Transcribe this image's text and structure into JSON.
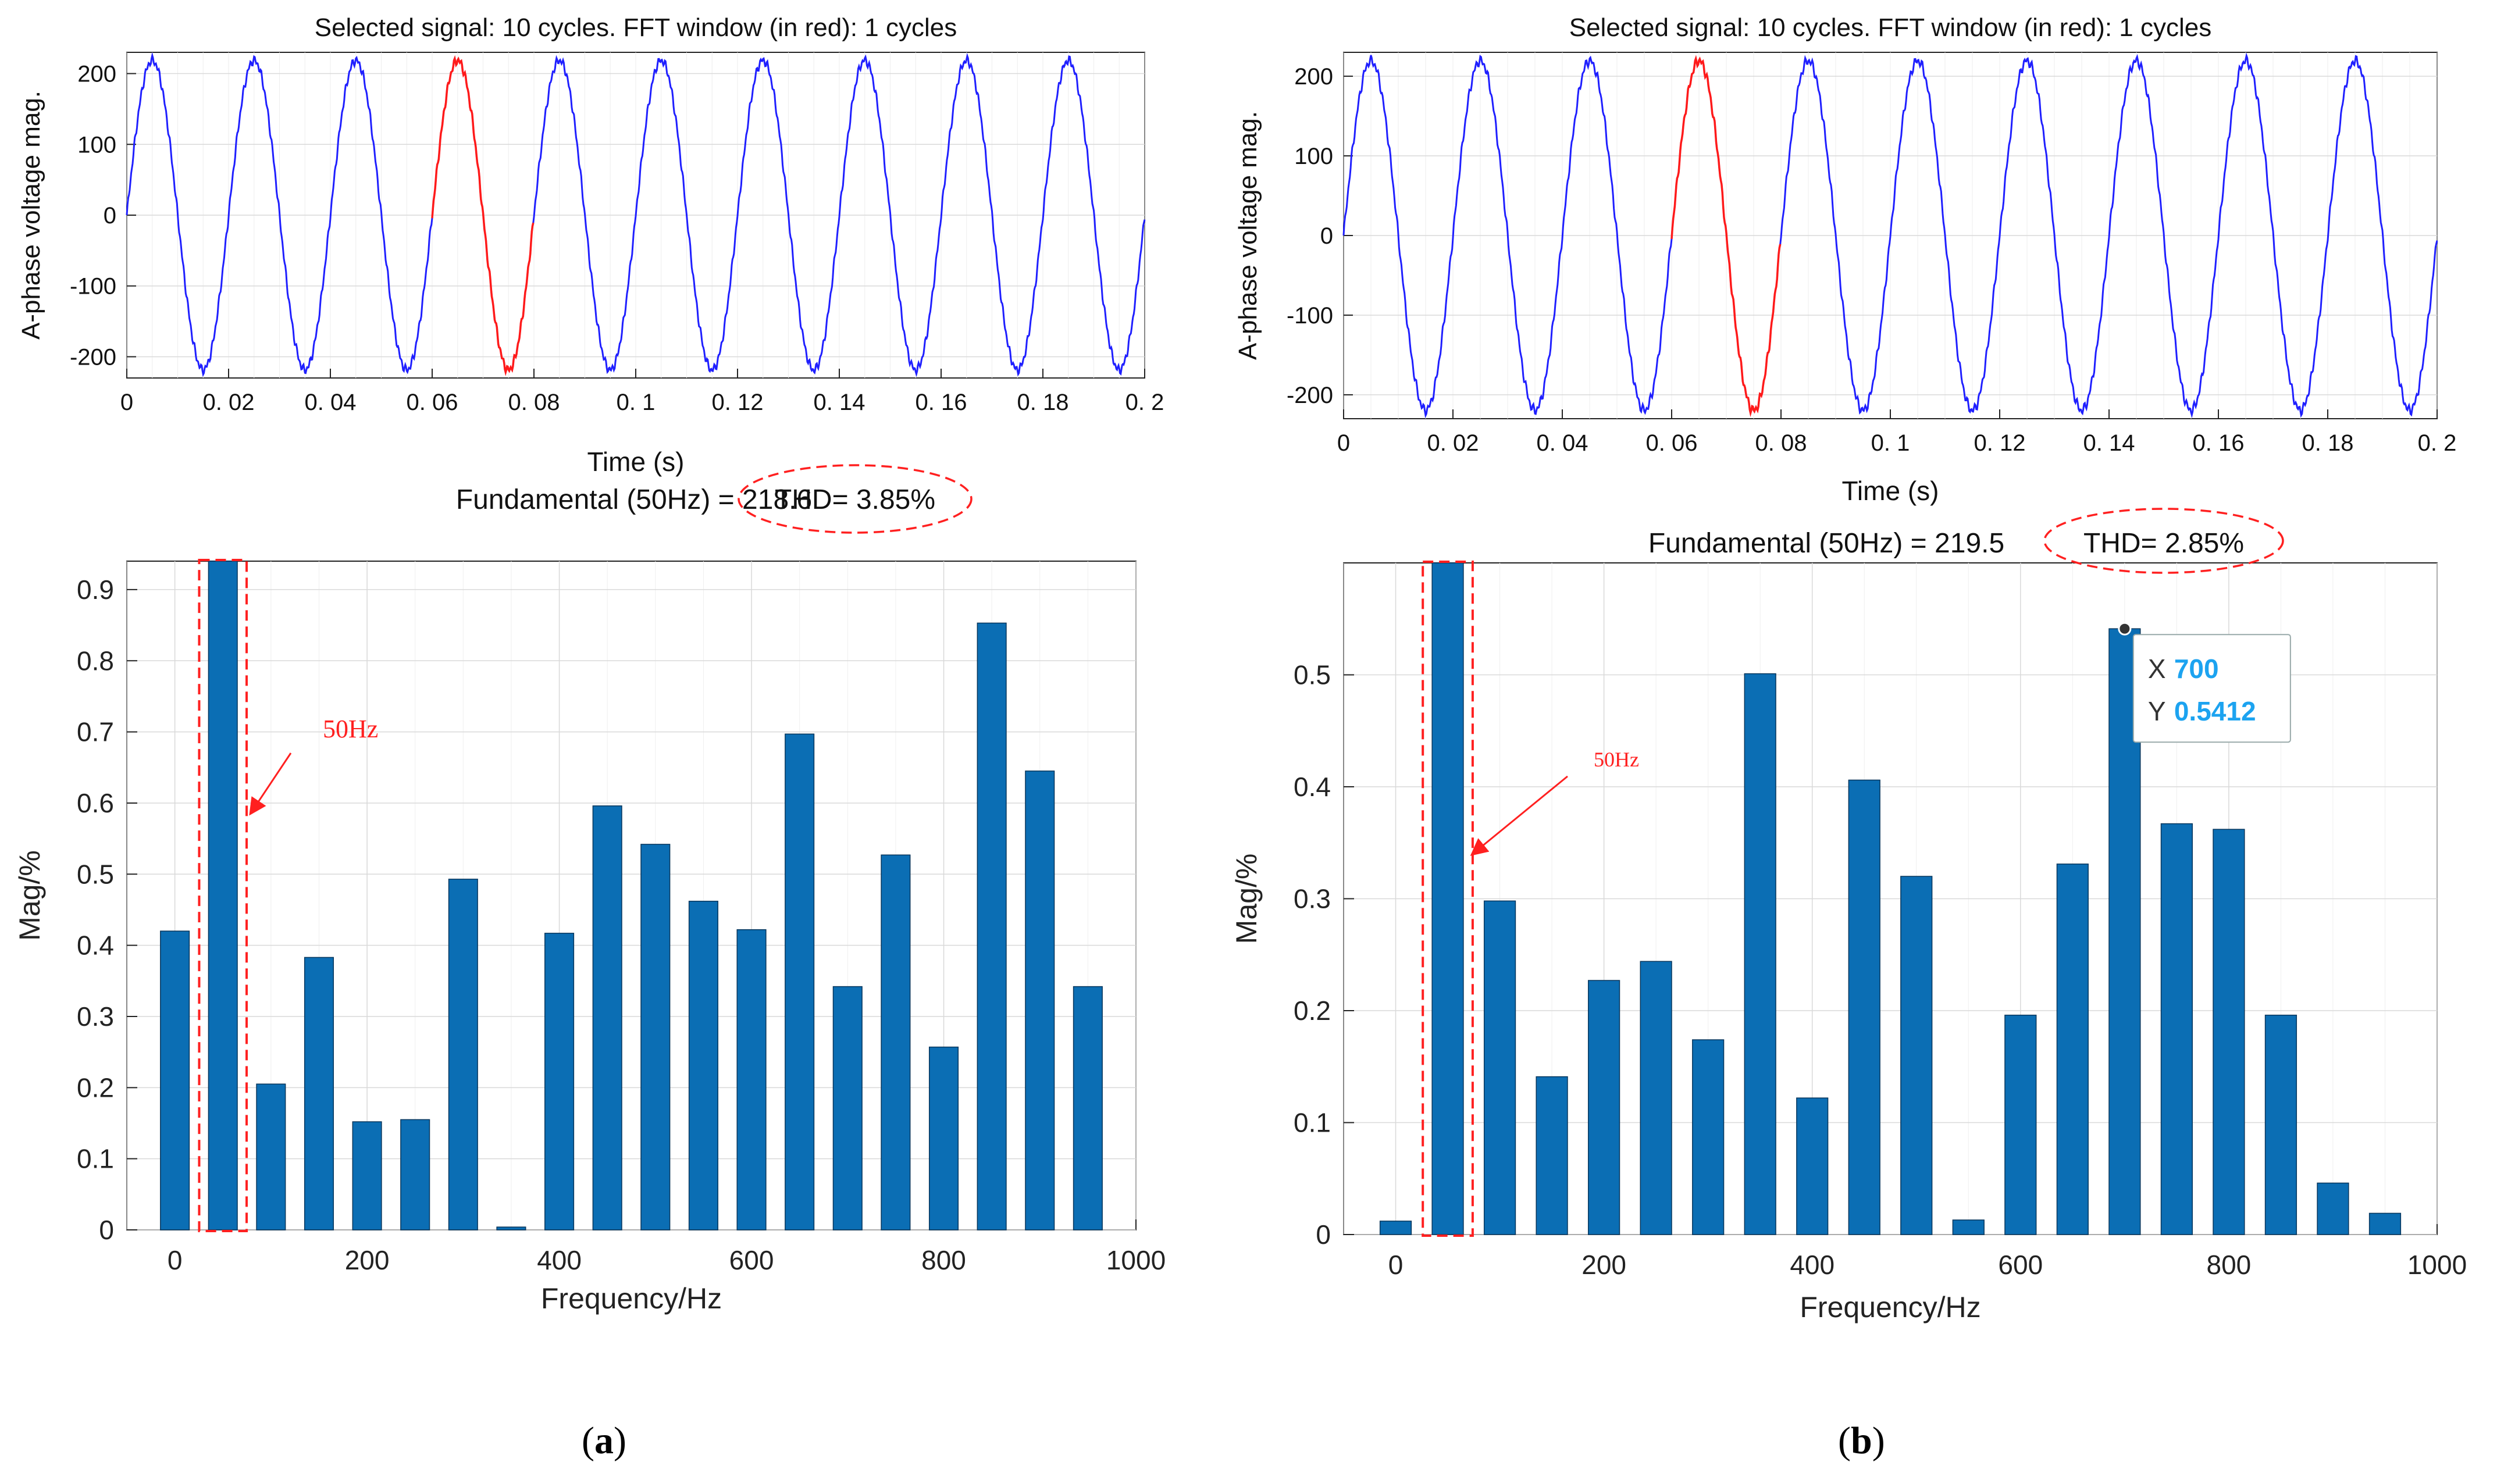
{
  "colors": {
    "bar": "#0b6eb4",
    "signal": "#1f1fff",
    "fft_window": "#ff1a1a",
    "annotation": "#ff2020",
    "grid": "#d9d9d9",
    "axis": "#222222",
    "datatip_text": "#1ca3f0"
  },
  "panels": [
    {
      "caption": {
        "open": "(",
        "letter": "a",
        "close": ")"
      },
      "time_plot": {
        "title": "Selected signal: 10 cycles. FFT window (in red): 1 cycles",
        "xlabel": "Time (s)",
        "ylabel": "A-phase voltage mag.",
        "xticks": [
          "0",
          "0. 02",
          "0. 04",
          "0. 06",
          "0. 08",
          "0. 1",
          "0. 12",
          "0. 14",
          "0. 16",
          "0. 18",
          "0. 2"
        ],
        "yticks": [
          "200",
          "100",
          "0",
          "-100",
          "-200"
        ]
      },
      "fft_plot": {
        "title": "Fundamental (50Hz) = 218.6",
        "thd": "THD= 3.85%",
        "annotation": "50Hz"
      }
    },
    {
      "caption": {
        "open": "(",
        "letter": "b",
        "close": ")"
      },
      "time_plot": {
        "title": "Selected signal: 10 cycles. FFT window (in red): 1 cycles",
        "xlabel": "Time (s)",
        "ylabel": "A-phase voltage mag.",
        "xticks": [
          "0",
          "0. 02",
          "0. 04",
          "0. 06",
          "0. 08",
          "0. 1",
          "0. 12",
          "0. 14",
          "0. 16",
          "0. 18",
          "0. 2"
        ],
        "yticks": [
          "200",
          "100",
          "0",
          "-100",
          "-200"
        ]
      },
      "fft_plot": {
        "title": "Fundamental (50Hz) = 219.5",
        "thd": "THD= 2.85%",
        "annotation": "50Hz",
        "datatip": {
          "x_label": "X",
          "x_value": "700",
          "y_label": "Y",
          "y_value": "0.5412"
        }
      }
    }
  ],
  "chart_data": [
    {
      "type": "line",
      "title": "Selected signal: 10 cycles. FFT window (in red): 1 cycles",
      "xlabel": "Time (s)",
      "ylabel": "A-phase voltage mag.",
      "xlim": [
        0,
        0.2
      ],
      "ylim": [
        -230,
        230
      ],
      "signal": {
        "amplitude": 218.6,
        "frequency_hz": 50,
        "cycles": 10
      },
      "fft_window": [
        0.06,
        0.08
      ]
    },
    {
      "type": "bar",
      "title": "Fundamental (50Hz) = 218.6 THD= 3.85%",
      "xlabel": "Frequency/Hz",
      "ylabel": "Mag/%",
      "xlim": [
        -50,
        1000
      ],
      "ylim": [
        0,
        0.94
      ],
      "x_ticks": [
        0,
        200,
        400,
        600,
        800,
        1000
      ],
      "y_ticks": [
        0,
        0.1,
        0.2,
        0.3,
        0.4,
        0.5,
        0.6,
        0.7,
        0.8,
        0.9
      ],
      "x": [
        0,
        50,
        100,
        150,
        200,
        250,
        300,
        350,
        400,
        450,
        500,
        550,
        600,
        650,
        700,
        750,
        800,
        850,
        900,
        950
      ],
      "values": [
        0.42,
        0.94,
        0.205,
        0.383,
        0.152,
        0.155,
        0.493,
        0.004,
        0.417,
        0.596,
        0.542,
        0.462,
        0.422,
        0.697,
        0.342,
        0.527,
        0.257,
        0.853,
        0.645,
        0.342
      ],
      "annotation": "50Hz"
    },
    {
      "type": "line",
      "title": "Selected signal: 10 cycles. FFT window (in red): 1 cycles",
      "xlabel": "Time (s)",
      "ylabel": "A-phase voltage mag.",
      "xlim": [
        0,
        0.2
      ],
      "ylim": [
        -230,
        230
      ],
      "signal": {
        "amplitude": 219.5,
        "frequency_hz": 50,
        "cycles": 10
      },
      "fft_window": [
        0.06,
        0.08
      ]
    },
    {
      "type": "bar",
      "title": "Fundamental (50Hz) = 219.5 THD= 2.85%",
      "xlabel": "Frequency/Hz",
      "ylabel": "Mag/%",
      "xlim": [
        -50,
        1000
      ],
      "ylim": [
        0,
        0.6
      ],
      "x_ticks": [
        0,
        200,
        400,
        600,
        800,
        1000
      ],
      "y_ticks": [
        0,
        0.1,
        0.2,
        0.3,
        0.4,
        0.5
      ],
      "x": [
        0,
        50,
        100,
        150,
        200,
        250,
        300,
        350,
        400,
        450,
        500,
        550,
        600,
        650,
        700,
        750,
        800,
        850,
        900,
        950
      ],
      "values": [
        0.012,
        0.6,
        0.298,
        0.141,
        0.227,
        0.244,
        0.174,
        0.501,
        0.122,
        0.406,
        0.32,
        0.013,
        0.196,
        0.331,
        0.5412,
        0.367,
        0.362,
        0.196,
        0.046,
        0.019
      ],
      "datatip": {
        "x": 700,
        "y": 0.5412
      },
      "annotation": "50Hz"
    }
  ]
}
